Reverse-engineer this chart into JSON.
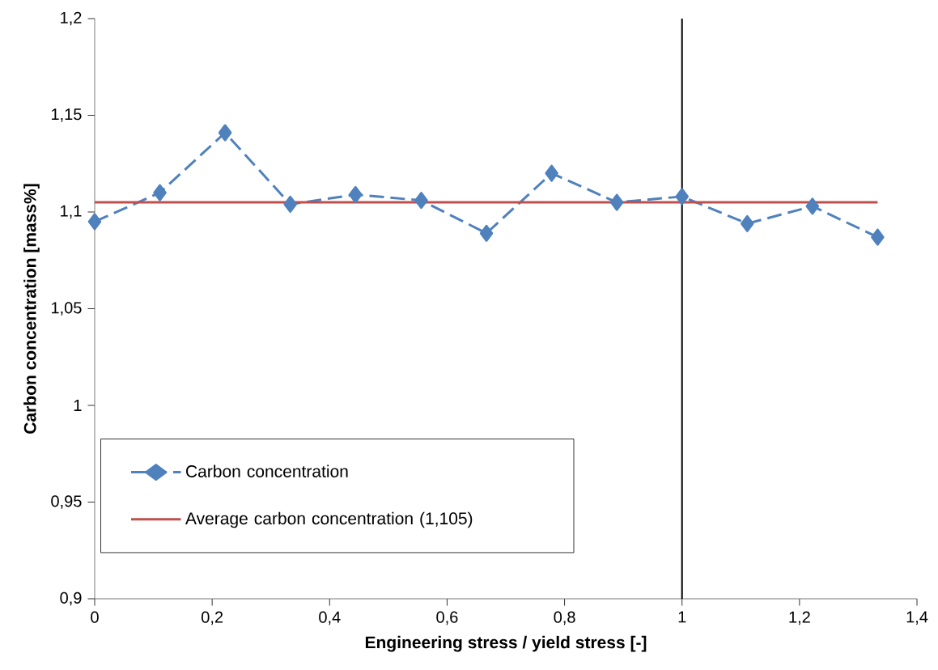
{
  "chart_data": {
    "type": "line",
    "xlabel": "Engineering stress / yield stress [-]",
    "ylabel": "Carbon concentration [mass%]",
    "xlim": [
      0,
      1.4
    ],
    "ylim": [
      0.9,
      1.2
    ],
    "xticks": [
      0,
      {
        "value": 0.2,
        "label": "0,2"
      },
      {
        "value": 0.4,
        "label": "0,4"
      },
      {
        "value": 0.6,
        "label": "0,6"
      },
      {
        "value": 0.8,
        "label": "0,8"
      },
      1,
      {
        "value": 1.2,
        "label": "1,2"
      },
      {
        "value": 1.4,
        "label": "1,4"
      }
    ],
    "yticks": [
      {
        "value": 0.9,
        "label": "0,9"
      },
      {
        "value": 0.95,
        "label": "0,95"
      },
      1,
      {
        "value": 1.05,
        "label": "1,05"
      },
      {
        "value": 1.1,
        "label": "1,1"
      },
      {
        "value": 1.15,
        "label": "1,15"
      },
      {
        "value": 1.2,
        "label": "1,2"
      }
    ],
    "grid": false,
    "legend": "bottom left",
    "series": [
      {
        "name": "Carbon concentration",
        "color": "#4f81bd",
        "marker": "diamond",
        "line_style": "dashed",
        "x": [
          0,
          0.111,
          0.222,
          0.333,
          0.444,
          0.556,
          0.667,
          0.778,
          0.889,
          1.0,
          1.111,
          1.222,
          1.333
        ],
        "values": [
          1.095,
          1.11,
          1.141,
          1.104,
          1.109,
          1.106,
          1.089,
          1.12,
          1.105,
          1.108,
          1.094,
          1.103,
          1.087
        ]
      },
      {
        "name": "Average carbon concentration (1,105)",
        "color": "#c0504d",
        "marker": "none",
        "line_style": "solid",
        "x": [
          0,
          1.333
        ],
        "values": [
          1.105,
          1.105
        ]
      }
    ],
    "ref_lines": [
      {
        "axis": "x",
        "value": 1,
        "color": "#000000"
      }
    ]
  }
}
